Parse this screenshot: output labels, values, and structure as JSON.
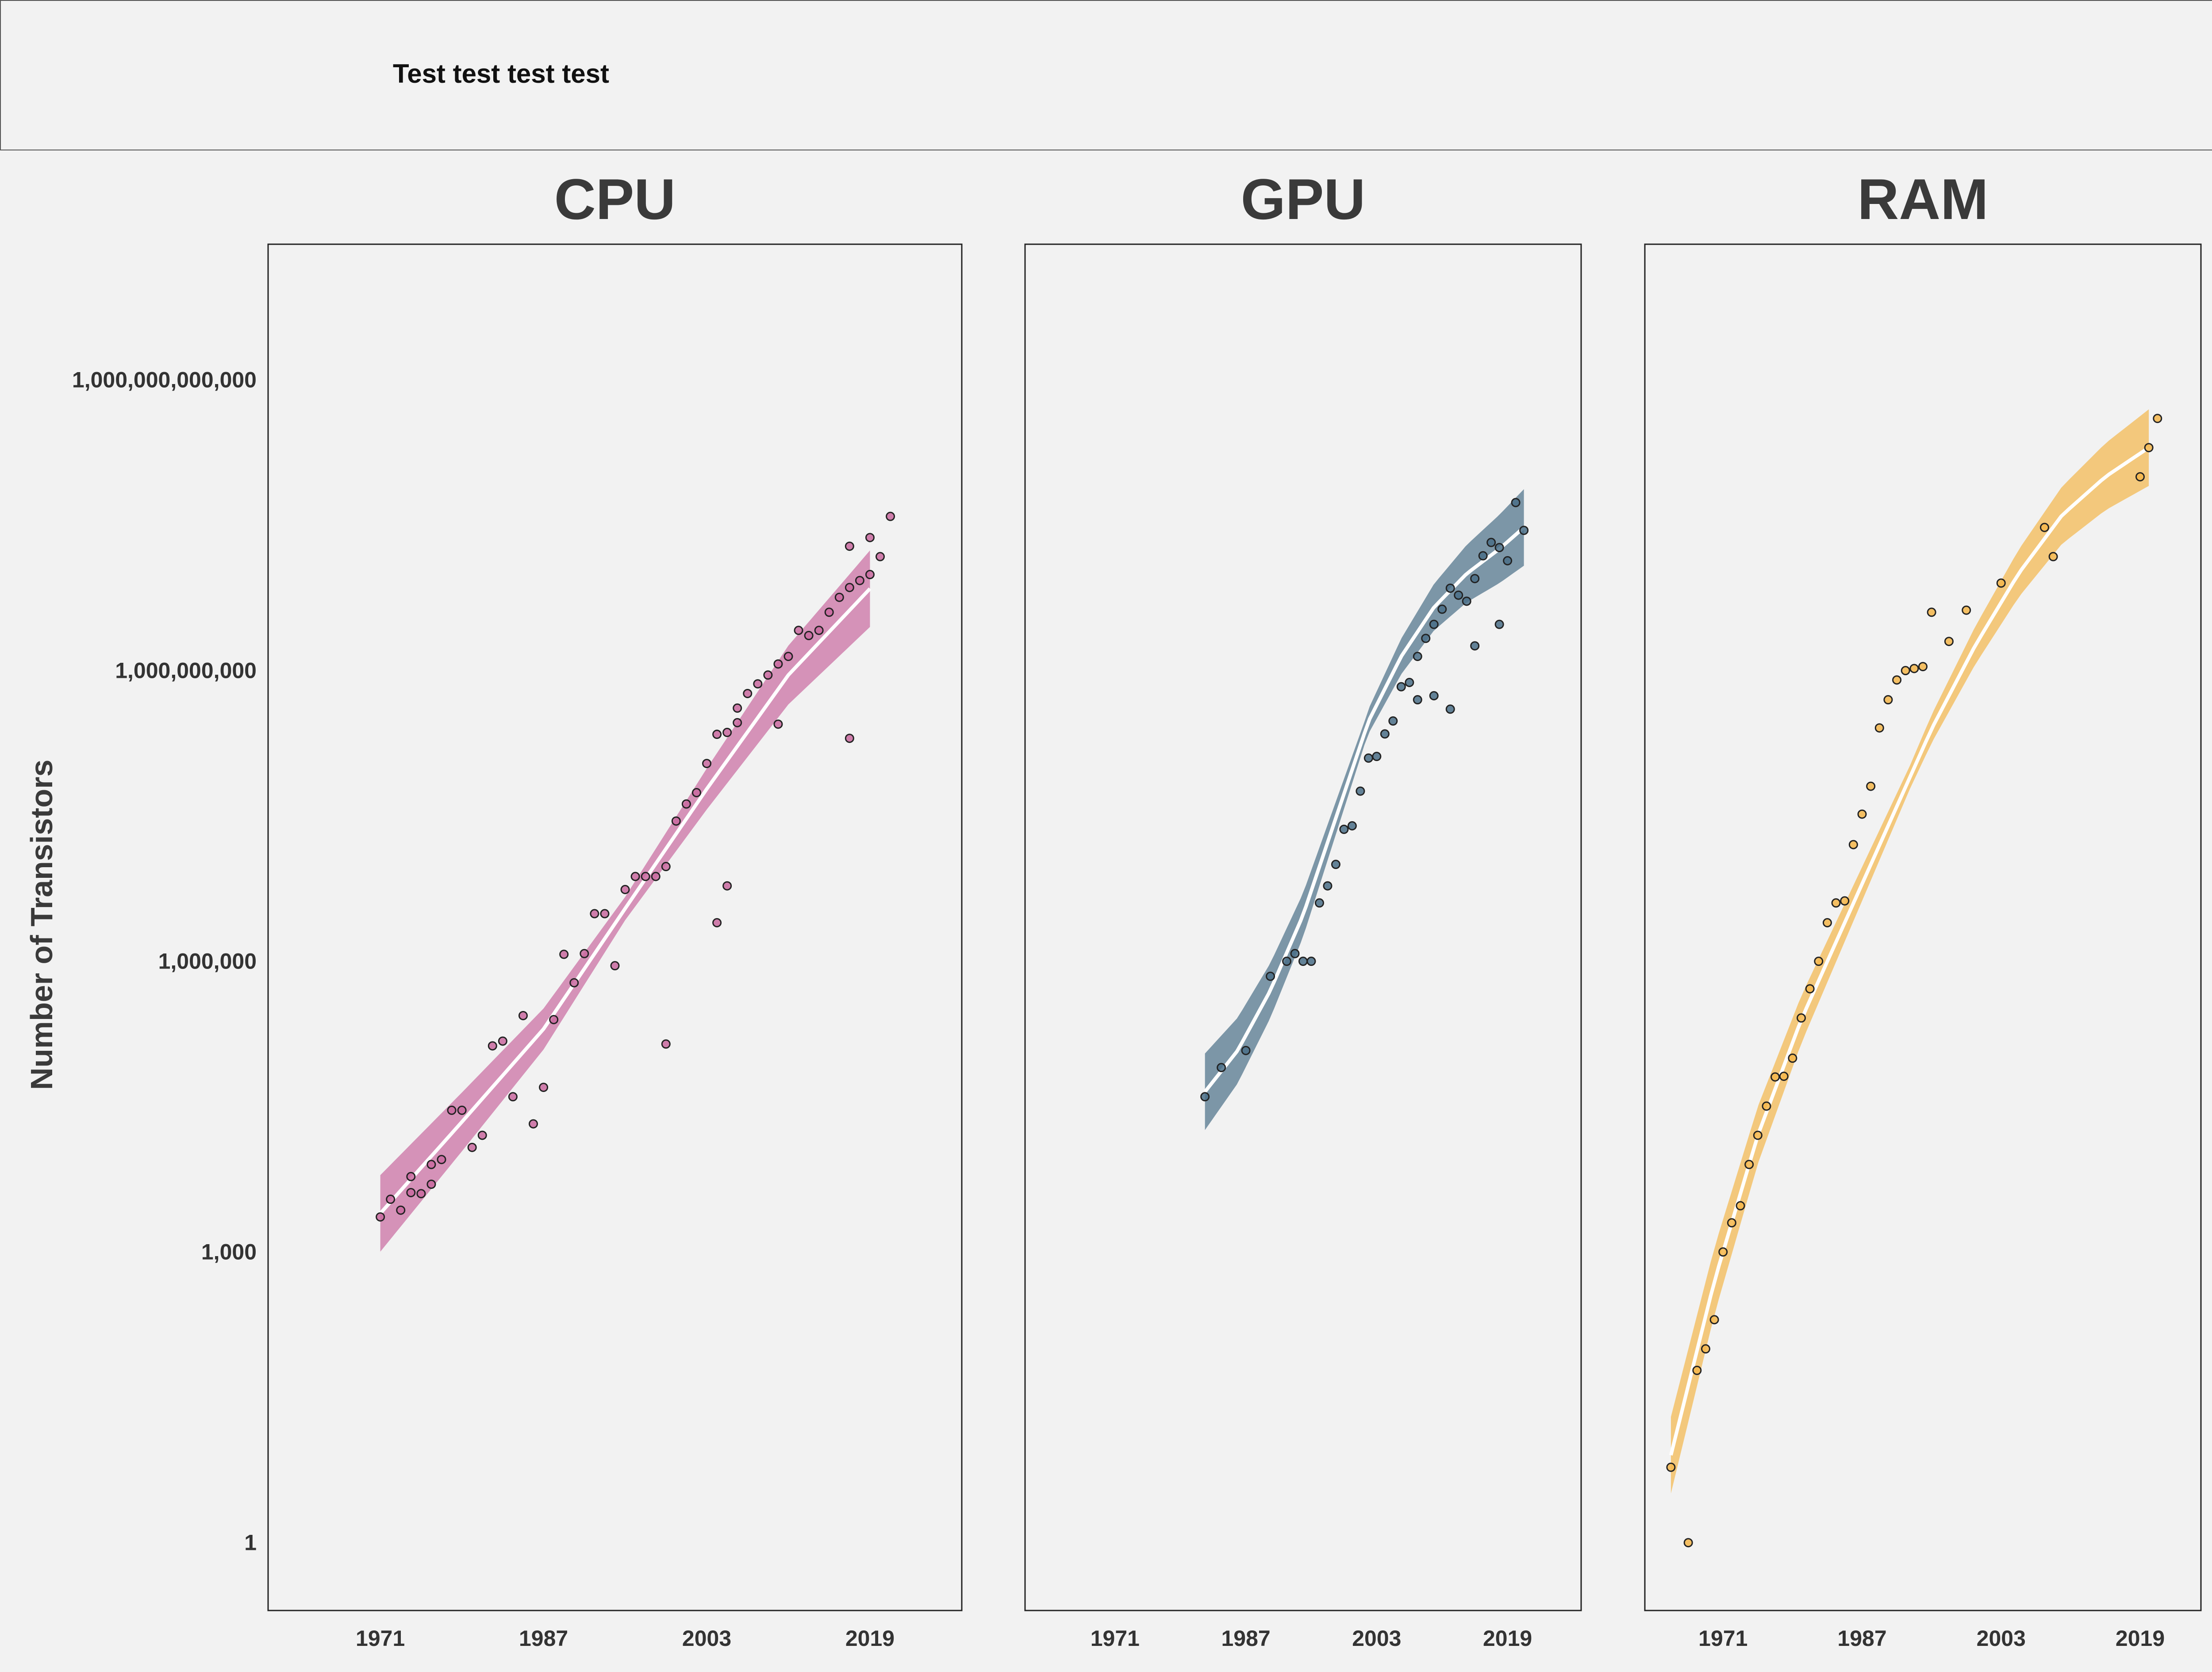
{
  "header": {
    "text": "Test test test test"
  },
  "colors": {
    "cpu": "#c9699f",
    "gpu": "#4a6f87",
    "ram": "#f4b64a",
    "background": "#f2f2f2"
  },
  "chart_data": {
    "type": "scatter",
    "y_scale": "log",
    "ylabel": "Number of Transistors",
    "y_ticks": [
      {
        "value": 1,
        "label": "1"
      },
      {
        "value": 1000,
        "label": "1,000"
      },
      {
        "value": 1000000,
        "label": "1,000,000"
      },
      {
        "value": 1000000000,
        "label": "1,000,000,000"
      },
      {
        "value": 1000000000000,
        "label": "1,000,000,000,000"
      }
    ],
    "x_ticks": [
      1971,
      1987,
      2003,
      2019
    ],
    "panels": [
      {
        "title": "CPU",
        "color": "#c9699f",
        "xlim": [
          1960,
          2028
        ],
        "trend": [
          [
            1971,
            2500
          ],
          [
            1979,
            22000
          ],
          [
            1987,
            200000
          ],
          [
            1995,
            3500000
          ],
          [
            2003,
            60000000
          ],
          [
            2011,
            900000000
          ],
          [
            2019,
            7000000000
          ]
        ],
        "points": [
          [
            1971,
            2300
          ],
          [
            1972,
            3500
          ],
          [
            1973,
            2700
          ],
          [
            1974,
            6000
          ],
          [
            1974,
            4100
          ],
          [
            1975,
            4000
          ],
          [
            1976,
            8000
          ],
          [
            1976,
            5000
          ],
          [
            1977,
            9000
          ],
          [
            1978,
            29000
          ],
          [
            1979,
            29000
          ],
          [
            1980,
            12000
          ],
          [
            1981,
            16000
          ],
          [
            1982,
            134000
          ],
          [
            1983,
            150000
          ],
          [
            1984,
            40000
          ],
          [
            1985,
            275000
          ],
          [
            1986,
            21000
          ],
          [
            1987,
            50000
          ],
          [
            1988,
            250000
          ],
          [
            1989,
            1180000
          ],
          [
            1990,
            600000
          ],
          [
            1991,
            1200000
          ],
          [
            1992,
            3100000
          ],
          [
            1993,
            3100000
          ],
          [
            1994,
            900000
          ],
          [
            1995,
            5500000
          ],
          [
            1996,
            7500000
          ],
          [
            1997,
            7500000
          ],
          [
            1998,
            7500000
          ],
          [
            1999,
            9500000
          ],
          [
            2000,
            28000000
          ],
          [
            2001,
            42000000
          ],
          [
            2002,
            55000000
          ],
          [
            2003,
            110000000
          ],
          [
            2004,
            220000000
          ],
          [
            2005,
            230000000
          ],
          [
            2006,
            290000000
          ],
          [
            2006,
            410000000
          ],
          [
            2007,
            580000000
          ],
          [
            2008,
            730000000
          ],
          [
            2009,
            900000000
          ],
          [
            2010,
            1170000000
          ],
          [
            2011,
            1400000000
          ],
          [
            2012,
            2600000000
          ],
          [
            2013,
            2300000000
          ],
          [
            2014,
            2600000000
          ],
          [
            2015,
            4000000000
          ],
          [
            2016,
            5700000000
          ],
          [
            2017,
            7200000000
          ],
          [
            2017,
            19200000000
          ],
          [
            2018,
            8500000000
          ],
          [
            2019,
            9800000000
          ],
          [
            2019,
            23600000000
          ],
          [
            2020,
            15000000000
          ],
          [
            2021,
            39000000000
          ],
          [
            1999,
            140000
          ],
          [
            2004,
            2500000
          ],
          [
            2005,
            6000000
          ],
          [
            2010,
            280000000
          ],
          [
            2017,
            200000000
          ]
        ]
      },
      {
        "title": "GPU",
        "color": "#4a6f87",
        "xlim": [
          1960,
          2028
        ],
        "trend": [
          [
            1982,
            45000
          ],
          [
            1986,
            120000
          ],
          [
            1990,
            500000
          ],
          [
            1994,
            3000000
          ],
          [
            1998,
            30000000
          ],
          [
            2002,
            300000000
          ],
          [
            2006,
            1400000000
          ],
          [
            2010,
            4500000000
          ],
          [
            2014,
            10000000000
          ],
          [
            2018,
            18000000000
          ],
          [
            2021,
            30000000000
          ]
        ],
        "points": [
          [
            1982,
            40000
          ],
          [
            1984,
            80000
          ],
          [
            1987,
            120000
          ],
          [
            1990,
            700000
          ],
          [
            1992,
            1000000
          ],
          [
            1993,
            1200000
          ],
          [
            1994,
            1000000
          ],
          [
            1995,
            1000000
          ],
          [
            1996,
            4000000
          ],
          [
            1997,
            6000000
          ],
          [
            1998,
            10000000
          ],
          [
            1999,
            23000000
          ],
          [
            2000,
            25000000
          ],
          [
            2001,
            57000000
          ],
          [
            2002,
            125000000
          ],
          [
            2003,
            130000000
          ],
          [
            2004,
            222000000
          ],
          [
            2005,
            302000000
          ],
          [
            2006,
            681000000
          ],
          [
            2007,
            754000000
          ],
          [
            2008,
            1400000000
          ],
          [
            2009,
            2150000000
          ],
          [
            2010,
            3000000000
          ],
          [
            2011,
            4300000000
          ],
          [
            2012,
            7080000000
          ],
          [
            2013,
            6000000000
          ],
          [
            2014,
            5200000000
          ],
          [
            2015,
            8900000000
          ],
          [
            2016,
            15300000000
          ],
          [
            2017,
            21000000000
          ],
          [
            2018,
            18600000000
          ],
          [
            2019,
            13600000000
          ],
          [
            2020,
            54200000000
          ],
          [
            2021,
            28000000000
          ],
          [
            2008,
            500000000
          ],
          [
            2010,
            550000000
          ],
          [
            2012,
            400000000
          ],
          [
            2015,
            1800000000
          ],
          [
            2018,
            3000000000
          ]
        ]
      },
      {
        "title": "RAM",
        "color": "#f4b64a",
        "xlim": [
          1962,
          2026
        ],
        "trend": [
          [
            1965,
            8
          ],
          [
            1970,
            500
          ],
          [
            1975,
            16000
          ],
          [
            1980,
            250000
          ],
          [
            1985,
            2500000
          ],
          [
            1990,
            25000000
          ],
          [
            1995,
            250000000
          ],
          [
            2000,
            1800000000
          ],
          [
            2005,
            10000000000
          ],
          [
            2010,
            40000000000
          ],
          [
            2015,
            100000000000
          ],
          [
            2020,
            200000000000
          ]
        ],
        "points": [
          [
            1965,
            6
          ],
          [
            1967,
            1
          ],
          [
            1968,
            60
          ],
          [
            1969,
            100
          ],
          [
            1970,
            200
          ],
          [
            1971,
            1000
          ],
          [
            1972,
            2000
          ],
          [
            1973,
            3000
          ],
          [
            1974,
            8000
          ],
          [
            1975,
            16000
          ],
          [
            1976,
            32000
          ],
          [
            1977,
            64000
          ],
          [
            1978,
            65000
          ],
          [
            1979,
            100000
          ],
          [
            1980,
            260000
          ],
          [
            1981,
            520000
          ],
          [
            1982,
            1000000
          ],
          [
            1983,
            2500000
          ],
          [
            1984,
            4000000
          ],
          [
            1985,
            4200000
          ],
          [
            1986,
            16000000
          ],
          [
            1987,
            33000000
          ],
          [
            1988,
            64000000
          ],
          [
            1989,
            256000000
          ],
          [
            1990,
            500000000
          ],
          [
            1991,
            800000000
          ],
          [
            1992,
            1000000000
          ],
          [
            1993,
            1050000000
          ],
          [
            1994,
            1100000000
          ],
          [
            1995,
            4000000000
          ],
          [
            1997,
            2000000000
          ],
          [
            1999,
            4200000000
          ],
          [
            2003,
            8000000000
          ],
          [
            2008,
            30000000000
          ],
          [
            2009,
            15000000000
          ],
          [
            2019,
            100000000000
          ],
          [
            2020,
            200000000000
          ],
          [
            2021,
            400000000000
          ]
        ]
      }
    ]
  }
}
